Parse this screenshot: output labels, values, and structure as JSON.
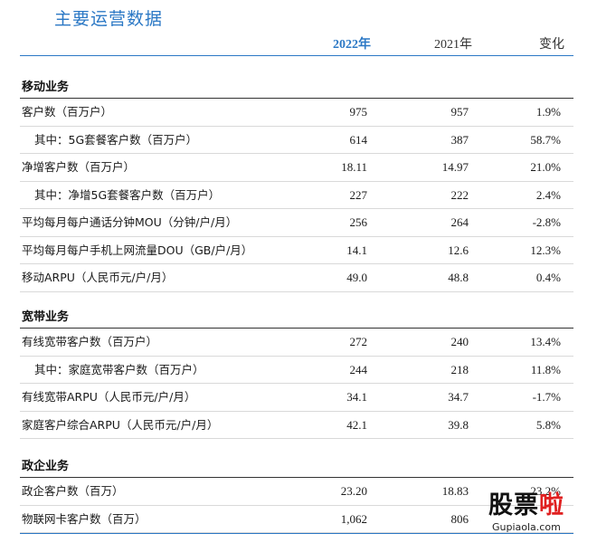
{
  "title": "主要运营数据",
  "headers": {
    "y2022": "2022年",
    "y2021": "2021年",
    "change": "变化"
  },
  "sections": [
    {
      "title": "移动业务",
      "rows": [
        {
          "label": "客户数（百万户）",
          "v2022": "975",
          "v2021": "957",
          "change": "1.9%"
        },
        {
          "label": "其中：5G套餐客户数（百万户）",
          "v2022": "614",
          "v2021": "387",
          "change": "58.7%"
        },
        {
          "label": "净增客户数（百万户）",
          "v2022": "18.11",
          "v2021": "14.97",
          "change": "21.0%"
        },
        {
          "label": "其中：净增5G套餐客户数（百万户）",
          "v2022": "227",
          "v2021": "222",
          "change": "2.4%"
        },
        {
          "label": "平均每月每户通话分钟MOU（分钟/户/月）",
          "v2022": "256",
          "v2021": "264",
          "change": "-2.8%"
        },
        {
          "label": "平均每月每户手机上网流量DOU（GB/户/月）",
          "v2022": "14.1",
          "v2021": "12.6",
          "change": "12.3%"
        },
        {
          "label": "移动ARPU（人民币元/户/月）",
          "v2022": "49.0",
          "v2021": "48.8",
          "change": "0.4%"
        }
      ]
    },
    {
      "title": "宽带业务",
      "rows": [
        {
          "label": "有线宽带客户数（百万户）",
          "v2022": "272",
          "v2021": "240",
          "change": "13.4%"
        },
        {
          "label": "其中：家庭宽带客户数（百万户）",
          "v2022": "244",
          "v2021": "218",
          "change": "11.8%"
        },
        {
          "label": "有线宽带ARPU（人民币元/户/月）",
          "v2022": "34.1",
          "v2021": "34.7",
          "change": "-1.7%"
        },
        {
          "label": "家庭客户综合ARPU（人民币元/户/月）",
          "v2022": "42.1",
          "v2021": "39.8",
          "change": "5.8%"
        }
      ]
    },
    {
      "title": "政企业务",
      "rows": [
        {
          "label": "政企客户数（百万）",
          "v2022": "23.20",
          "v2021": "18.83",
          "change": "23.2%"
        },
        {
          "label": "物联网卡客户数（百万）",
          "v2022": "1,062",
          "v2021": "806",
          "change": ""
        }
      ]
    }
  ],
  "watermark": {
    "main_a": "股票",
    "main_b": "啦",
    "sub": "Gupiaola.com"
  }
}
